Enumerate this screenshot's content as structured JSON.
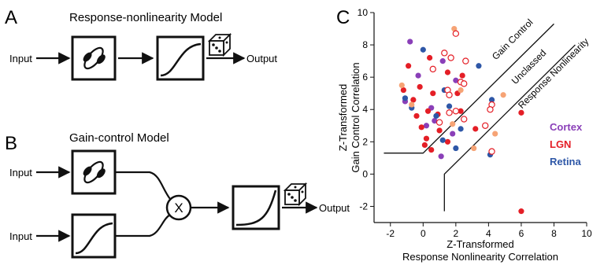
{
  "panels": {
    "a": {
      "letter": "A",
      "title": "Response-nonlinearity Model",
      "input_label": "Input",
      "output_label": "Output"
    },
    "b": {
      "letter": "B",
      "title": "Gain-control Model",
      "input_label_top": "Input",
      "input_label_bottom": "Input",
      "multiply_symbol": "X",
      "output_label": "Output"
    },
    "c": {
      "letter": "C"
    }
  },
  "chart_data": {
    "type": "scatter",
    "xlabel": "Z-Transformed\nResponse Nonlinearity Correlation",
    "ylabel": "Z-Transformed\nGain Control Correlation",
    "xlim": [
      -3,
      10
    ],
    "ylim": [
      -3,
      10
    ],
    "xticks": [
      -2,
      0,
      2,
      4,
      6,
      8,
      10
    ],
    "yticks": [
      -2,
      0,
      2,
      4,
      6,
      8,
      10
    ],
    "region_labels": [
      "Gain Control",
      "Unclassed",
      "Response Nonlinearity"
    ],
    "legend": [
      {
        "label": "Cortex",
        "color": "#8a3fb8"
      },
      {
        "label": "LGN",
        "color": "#e41e26"
      },
      {
        "label": "Retina",
        "color": "#2e57a7"
      }
    ],
    "series": [
      {
        "name": "Cortex",
        "color": "#8a3fb8",
        "points": [
          [
            -0.8,
            8.2
          ],
          [
            -0.3,
            6.1
          ],
          [
            1.2,
            7.0
          ],
          [
            0.5,
            4.1
          ],
          [
            -1.1,
            4.5
          ],
          [
            2.0,
            5.8
          ],
          [
            1.8,
            2.5
          ],
          [
            1.1,
            1.1
          ],
          [
            0.2,
            3.0
          ],
          [
            0.7,
            3.3
          ]
        ]
      },
      {
        "name": "LGN",
        "color": "#e41e26",
        "points": [
          [
            -0.9,
            6.7
          ],
          [
            0.4,
            7.2
          ],
          [
            1.5,
            6.3
          ],
          [
            -0.2,
            5.4
          ],
          [
            0.6,
            5.0
          ],
          [
            -0.6,
            4.6
          ],
          [
            2.4,
            6.1
          ],
          [
            -0.4,
            3.6
          ],
          [
            0.3,
            3.9
          ],
          [
            0.9,
            3.7
          ],
          [
            -0.1,
            2.9
          ],
          [
            0.2,
            2.2
          ],
          [
            0.5,
            1.5
          ],
          [
            1.5,
            2.0
          ],
          [
            2.3,
            3.9
          ],
          [
            0.1,
            1.8
          ],
          [
            3.2,
            2.8
          ],
          [
            2.1,
            5.0
          ],
          [
            6.0,
            -2.3
          ],
          [
            6.0,
            3.8
          ],
          [
            -1.2,
            5.2
          ],
          [
            1.0,
            2.7
          ]
        ]
      },
      {
        "name": "Retina",
        "color": "#2e57a7",
        "points": [
          [
            0.0,
            7.7
          ],
          [
            3.4,
            6.7
          ],
          [
            1.3,
            5.2
          ],
          [
            1.6,
            4.2
          ],
          [
            -1.1,
            4.7
          ],
          [
            0.8,
            3.6
          ],
          [
            2.3,
            2.8
          ],
          [
            2.0,
            1.6
          ],
          [
            4.2,
            4.6
          ],
          [
            4.1,
            1.2
          ],
          [
            1.2,
            2.1
          ],
          [
            -0.7,
            4.1
          ]
        ]
      },
      {
        "name": "",
        "color": "#f6a375",
        "points": [
          [
            1.9,
            9.0
          ],
          [
            -1.3,
            5.5
          ],
          [
            -0.7,
            4.3
          ],
          [
            1.8,
            3.1
          ],
          [
            4.9,
            4.9
          ],
          [
            4.4,
            2.5
          ],
          [
            2.3,
            5.2
          ],
          [
            3.1,
            1.6
          ]
        ]
      },
      {
        "name": "",
        "color": "#e41e26",
        "hollow": true,
        "points": [
          [
            2.0,
            8.7
          ],
          [
            1.3,
            7.5
          ],
          [
            2.6,
            7.0
          ],
          [
            1.7,
            7.2
          ],
          [
            0.6,
            6.5
          ],
          [
            2.3,
            5.7
          ],
          [
            2.5,
            5.6
          ],
          [
            1.5,
            5.2
          ],
          [
            1.6,
            4.9
          ],
          [
            4.2,
            4.3
          ],
          [
            4.1,
            4.0
          ],
          [
            2.5,
            3.4
          ],
          [
            1.6,
            3.8
          ],
          [
            2.0,
            3.9
          ],
          [
            3.8,
            3.0
          ],
          [
            4.2,
            1.4
          ],
          [
            1.0,
            3.2
          ]
        ]
      }
    ]
  }
}
